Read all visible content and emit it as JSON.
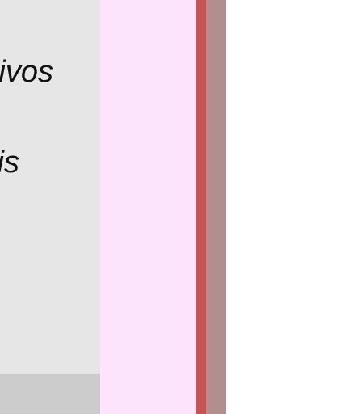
{
  "left_panel": {
    "texts": [
      "ivos",
      "is"
    ]
  },
  "colors": {
    "left_panel": "#e6e6e6",
    "left_panel_footer": "#cccccc",
    "pink_panel": "#fde4fd",
    "red_stripe": "#c45456",
    "mauve_stripe": "#b18f8f",
    "background": "#ffffff"
  }
}
